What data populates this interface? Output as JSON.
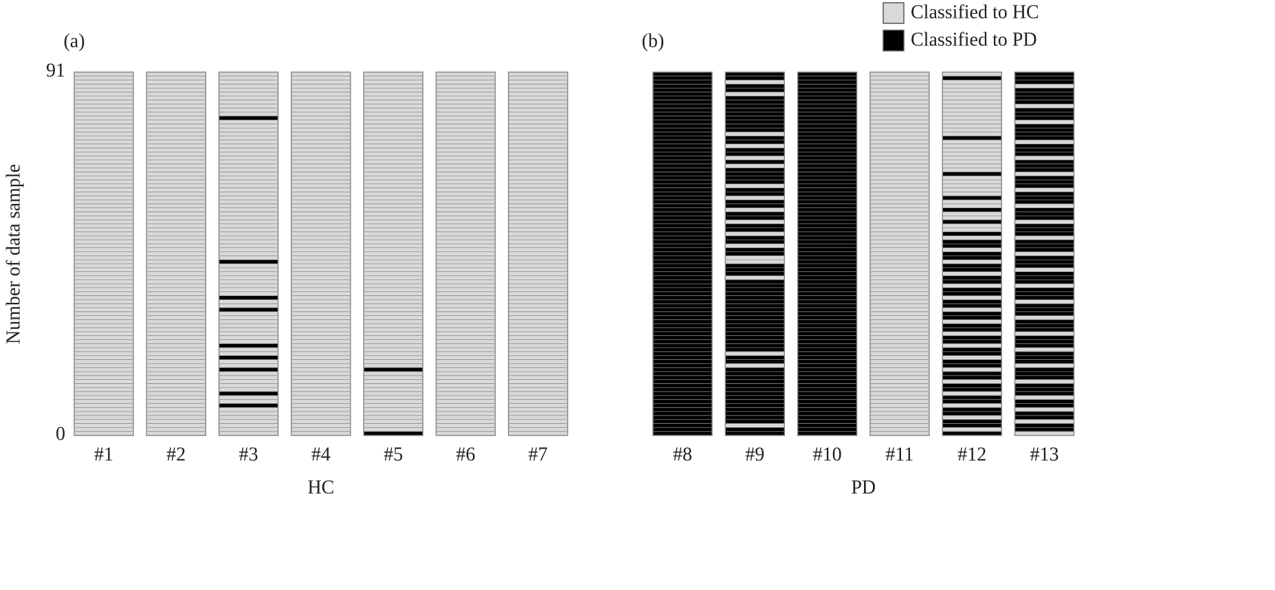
{
  "chart_data": [
    {
      "type": "strip",
      "panel_label": "(a)",
      "group_label": "HC",
      "ylabel": "Number of data sample",
      "ylim": [
        0,
        91
      ],
      "yticks": [
        0,
        91
      ],
      "subjects": [
        {
          "name": "#1",
          "pd_runs": []
        },
        {
          "name": "#2",
          "pd_runs": []
        },
        {
          "name": "#3",
          "pd_runs": [
            [
              79,
              80
            ],
            [
              43,
              44
            ],
            [
              34,
              35
            ],
            [
              31,
              32
            ],
            [
              22,
              23
            ],
            [
              19,
              20
            ],
            [
              16,
              17
            ],
            [
              10,
              11
            ],
            [
              7,
              8
            ]
          ]
        },
        {
          "name": "#4",
          "pd_runs": []
        },
        {
          "name": "#5",
          "pd_runs": [
            [
              16,
              17
            ],
            [
              0,
              1
            ]
          ]
        },
        {
          "name": "#6",
          "pd_runs": []
        },
        {
          "name": "#7",
          "pd_runs": []
        }
      ]
    },
    {
      "type": "strip",
      "panel_label": "(b)",
      "group_label": "PD",
      "ylim": [
        0,
        91
      ],
      "subjects": [
        {
          "name": "#8",
          "pd_runs": [
            [
              0,
              91
            ]
          ]
        },
        {
          "name": "#9",
          "pd_runs": [
            [
              0,
              2
            ],
            [
              3,
              17
            ],
            [
              18,
              20
            ],
            [
              21,
              39
            ],
            [
              40,
              43
            ],
            [
              45,
              47
            ],
            [
              48,
              50
            ],
            [
              51,
              53
            ],
            [
              54,
              56
            ],
            [
              57,
              59
            ],
            [
              60,
              62
            ],
            [
              63,
              67
            ],
            [
              68,
              69
            ],
            [
              70,
              72
            ],
            [
              73,
              75
            ],
            [
              76,
              85
            ],
            [
              86,
              88
            ],
            [
              89,
              91
            ]
          ]
        },
        {
          "name": "#10",
          "pd_runs": [
            [
              0,
              91
            ]
          ]
        },
        {
          "name": "#11",
          "pd_runs": []
        },
        {
          "name": "#12",
          "pd_runs": [
            [
              89,
              90
            ],
            [
              74,
              75
            ],
            [
              65,
              66
            ],
            [
              59,
              60
            ],
            [
              56,
              57
            ],
            [
              53,
              54
            ],
            [
              50,
              51
            ],
            [
              47,
              49
            ],
            [
              44,
              46
            ],
            [
              41,
              43
            ],
            [
              38,
              40
            ],
            [
              35,
              37
            ],
            [
              32,
              34
            ],
            [
              29,
              31
            ],
            [
              26,
              28
            ],
            [
              23,
              25
            ],
            [
              20,
              22
            ],
            [
              17,
              19
            ],
            [
              14,
              16
            ],
            [
              11,
              13
            ],
            [
              8,
              10
            ],
            [
              5,
              7
            ],
            [
              2,
              4
            ],
            [
              0,
              1
            ]
          ]
        },
        {
          "name": "#13",
          "pd_runs": [
            [
              88,
              91
            ],
            [
              83,
              87
            ],
            [
              79,
              82
            ],
            [
              74,
              78
            ],
            [
              70,
              73
            ],
            [
              66,
              69
            ],
            [
              62,
              65
            ],
            [
              58,
              61
            ],
            [
              54,
              57
            ],
            [
              50,
              53
            ],
            [
              46,
              49
            ],
            [
              42,
              45
            ],
            [
              38,
              41
            ],
            [
              34,
              37
            ],
            [
              30,
              33
            ],
            [
              26,
              29
            ],
            [
              22,
              25
            ],
            [
              18,
              21
            ],
            [
              14,
              17
            ],
            [
              10,
              13
            ],
            [
              7,
              9
            ],
            [
              4,
              6
            ],
            [
              1,
              3
            ]
          ]
        }
      ]
    }
  ],
  "legend": [
    {
      "name": "Classified to HC",
      "color": "#d9d9d9"
    },
    {
      "name": "Classified to PD",
      "color": "#000000"
    }
  ]
}
